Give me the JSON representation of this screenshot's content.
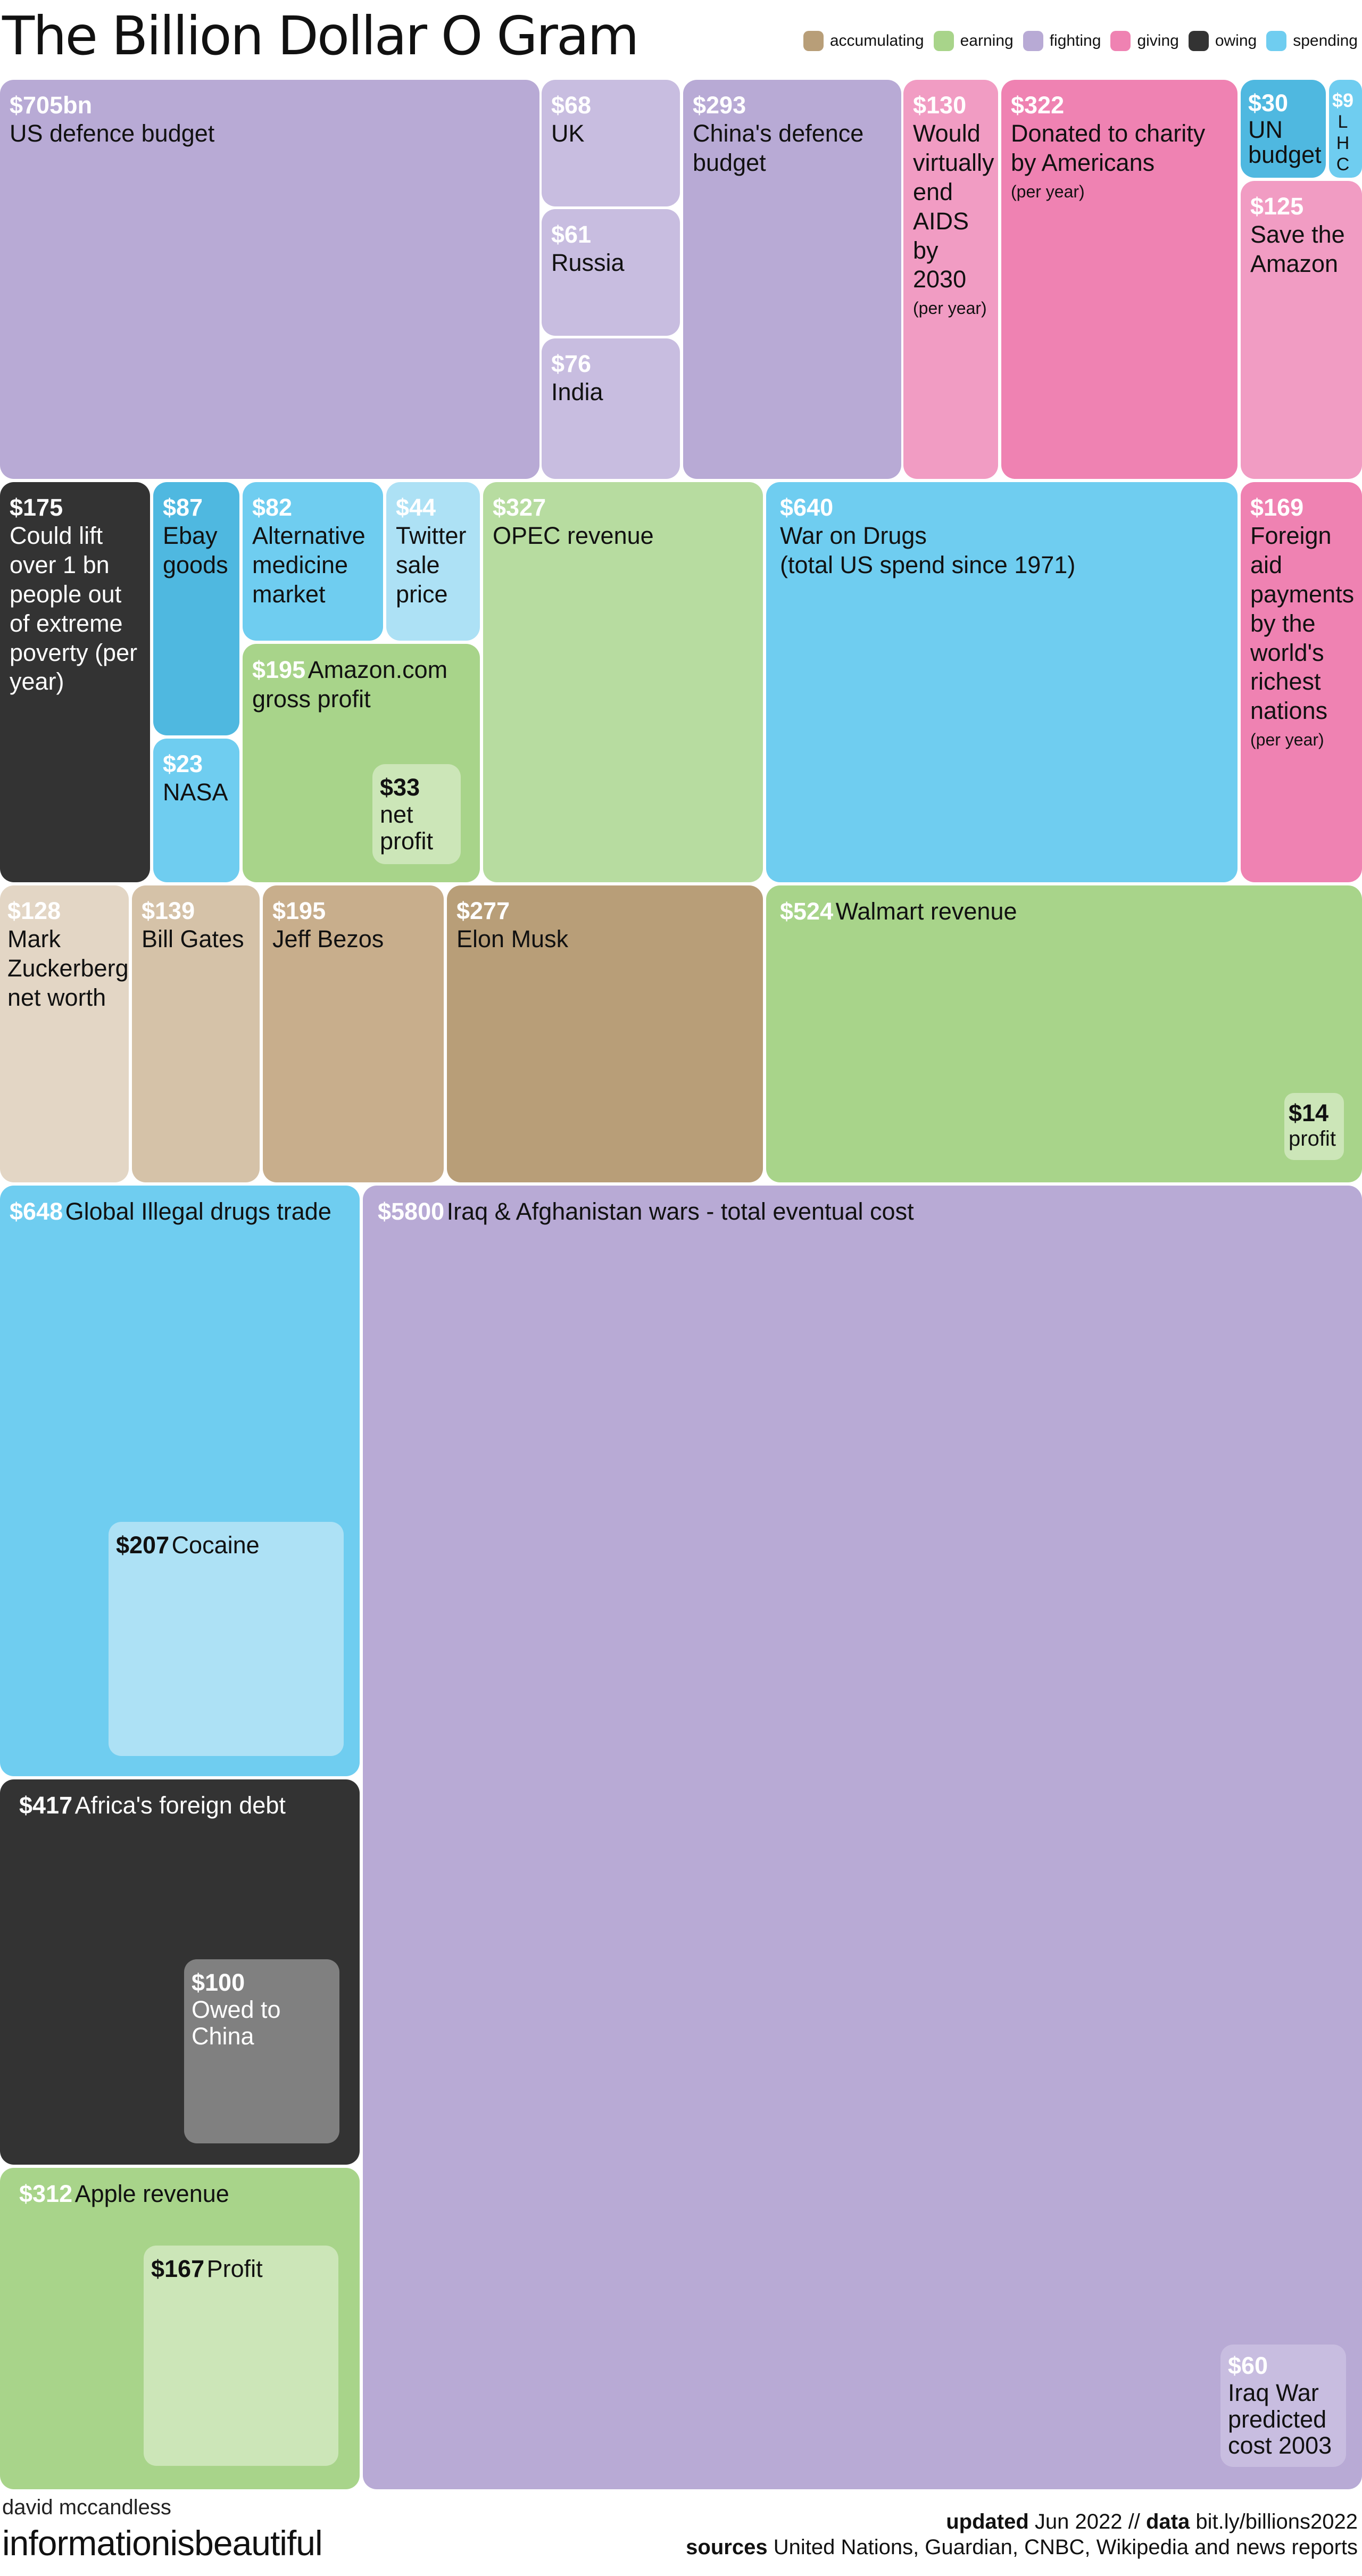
{
  "title": "The Billion Dollar O Gram",
  "legend": [
    {
      "name": "accumulating",
      "color": "#b89e78"
    },
    {
      "name": "earning",
      "color": "#a8d48a"
    },
    {
      "name": "fighting",
      "color": "#b8aad5"
    },
    {
      "name": "giving",
      "color": "#ef82b2"
    },
    {
      "name": "owing",
      "color": "#333333"
    },
    {
      "name": "spending",
      "color": "#6fcdf0"
    }
  ],
  "tiles": {
    "us_defence": {
      "amount": "$705bn",
      "label": "US defence budget"
    },
    "uk": {
      "amount": "$68",
      "label": "UK"
    },
    "russia": {
      "amount": "$61",
      "label": "Russia"
    },
    "india": {
      "amount": "$76",
      "label": "India"
    },
    "china_defence": {
      "amount": "$293",
      "label": "China's defence budget"
    },
    "aids": {
      "amount": "$130",
      "label": "Would virtually end AIDS by 2030",
      "note": "(per year)"
    },
    "charity": {
      "amount": "$322",
      "label": "Donated to charity by Americans",
      "note": "(per year)"
    },
    "un": {
      "amount": "$30",
      "label": "UN budget"
    },
    "lhc": {
      "amount": "$9",
      "label": "LHC"
    },
    "amazon_save": {
      "amount": "$125",
      "label": "Save the Amazon"
    },
    "poverty": {
      "amount": "$175",
      "label": "Could lift over 1 bn people out of extreme poverty (per year)"
    },
    "ebay": {
      "amount": "$87",
      "label": "Ebay goods"
    },
    "alt_med": {
      "amount": "$82",
      "label": "Alternative medicine market"
    },
    "twitter": {
      "amount": "$44",
      "label": "Twitter sale price"
    },
    "nasa": {
      "amount": "$23",
      "label": "NASA"
    },
    "amazon_profit": {
      "amount": "$195",
      "label": "Amazon.com gross profit"
    },
    "amazon_net": {
      "amount": "$33",
      "label": "net profit"
    },
    "opec": {
      "amount": "$327",
      "label": "OPEC revenue"
    },
    "drugs_war": {
      "amount": "$640",
      "label": "War on Drugs",
      "label2": "(total US spend since 1971)"
    },
    "foreign_aid": {
      "amount": "$169",
      "label": "Foreign aid payments by the world's richest nations",
      "note": "(per year)"
    },
    "zuckerberg": {
      "amount": "$128",
      "label": "Mark Zuckerberg net worth"
    },
    "gates": {
      "amount": "$139",
      "label": "Bill Gates"
    },
    "bezos": {
      "amount": "$195",
      "label": "Jeff Bezos"
    },
    "musk": {
      "amount": "$277",
      "label": "Elon Musk"
    },
    "walmart": {
      "amount": "$524",
      "label": "Walmart revenue"
    },
    "walmart_profit": {
      "amount": "$14",
      "label": "profit"
    },
    "illegal_drugs": {
      "amount": "$648",
      "label": "Global Illegal drugs trade"
    },
    "cocaine": {
      "amount": "$207",
      "label": "Cocaine"
    },
    "iraq": {
      "amount": "$5800",
      "label": "Iraq & Afghanistan wars - total eventual cost"
    },
    "iraq_predicted": {
      "amount": "$60",
      "label": "Iraq War predicted cost 2003"
    },
    "africa_debt": {
      "amount": "$417",
      "label": "Africa's foreign debt"
    },
    "china_owed": {
      "amount": "$100",
      "label": "Owed to China"
    },
    "apple": {
      "amount": "$312",
      "label": "Apple revenue"
    },
    "apple_profit": {
      "amount": "$167",
      "label": "Profit"
    }
  },
  "footer": {
    "author": "david mccandless",
    "brand": "informationisbeautiful",
    "updated_label": "updated",
    "updated_value": "Jun 2022 //",
    "data_label": "data",
    "data_value": "bit.ly/billions2022",
    "sources_label": "sources",
    "sources_value": "United Nations, Guardian, CNBC, Wikipedia and news reports"
  }
}
